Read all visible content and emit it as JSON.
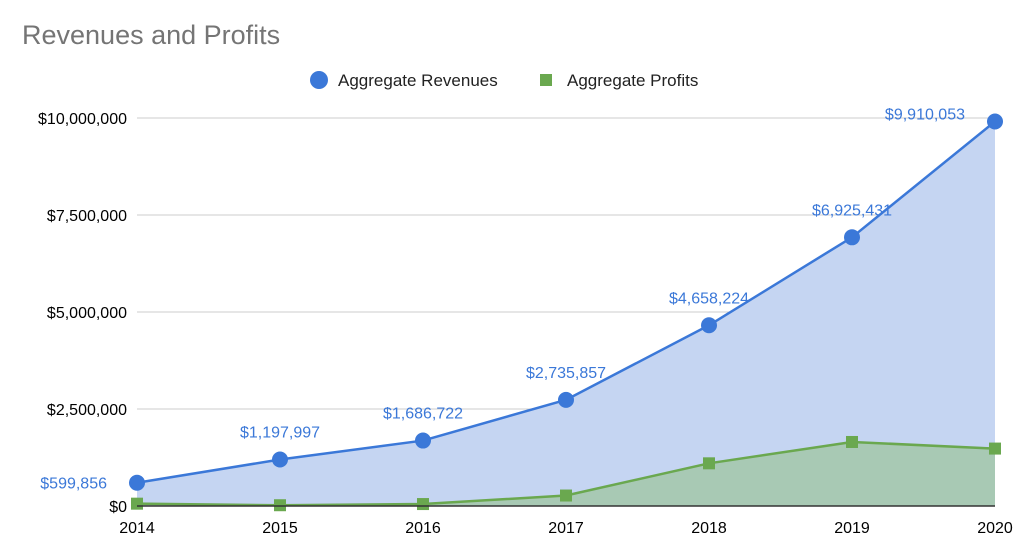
{
  "chart_data": {
    "type": "area",
    "title": "Revenues and Profits",
    "xlabel": "",
    "ylabel": "",
    "categories": [
      "2014",
      "2015",
      "2016",
      "2017",
      "2018",
      "2019",
      "2020"
    ],
    "ylim": [
      0,
      10000000
    ],
    "yticks": [
      0,
      2500000,
      5000000,
      7500000,
      10000000
    ],
    "ytick_labels": [
      "$0",
      "$2,500,000",
      "$5,000,000",
      "$7,500,000",
      "$10,000,000"
    ],
    "grid": true,
    "legend_position": "top",
    "series": [
      {
        "name": "Aggregate Revenues",
        "color": "#3b78d8",
        "fill": "#c5d5f2",
        "marker": "circle",
        "values": [
          599856,
          1197997,
          1686722,
          2735857,
          4658224,
          6925431,
          9910053
        ],
        "data_labels": [
          "$599,856",
          "$1,197,997",
          "$1,686,722",
          "$2,735,857",
          "$4,658,224",
          "$6,925,431",
          "$9,910,053"
        ]
      },
      {
        "name": "Aggregate Profits",
        "color": "#6aa84f",
        "fill": "#a8c9b4",
        "marker": "square",
        "values": [
          60000,
          20000,
          50000,
          270000,
          1100000,
          1650000,
          1480000
        ]
      }
    ]
  }
}
